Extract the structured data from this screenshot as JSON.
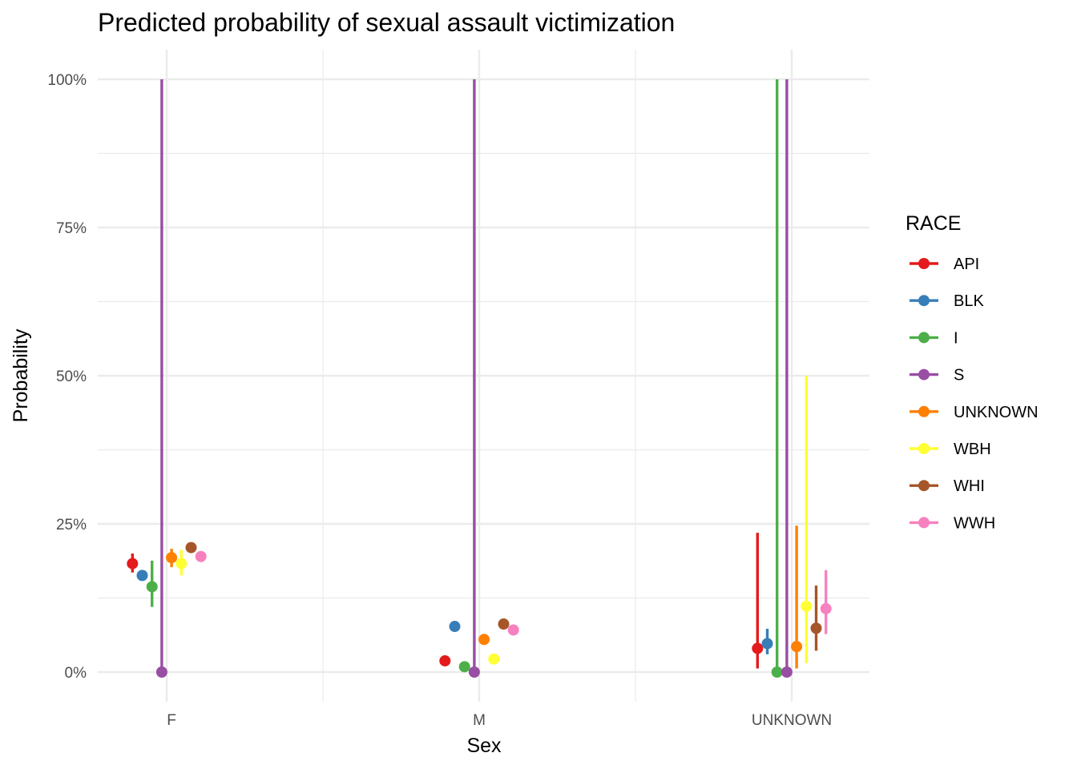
{
  "chart_data": {
    "type": "scatter",
    "title": "Predicted probability of sexual assault victimization",
    "xlabel": "Sex",
    "ylabel": "Probability",
    "categories": [
      "F",
      "M",
      "UNKNOWN"
    ],
    "ylim": [
      0,
      1
    ],
    "yticks": [
      0,
      0.25,
      0.5,
      0.75,
      1
    ],
    "ytick_labels": [
      "0%",
      "25%",
      "50%",
      "75%",
      "100%"
    ],
    "grid": true,
    "legend": {
      "title": "RACE",
      "position": "right"
    },
    "series": [
      {
        "name": "API",
        "color": "#E41A1C",
        "points": [
          {
            "x": "F",
            "y": 0.183,
            "low": 0.168,
            "high": 0.2
          },
          {
            "x": "M",
            "y": 0.019,
            "low": null,
            "high": null
          },
          {
            "x": "UNKNOWN",
            "y": 0.04,
            "low": 0.006,
            "high": 0.235
          }
        ]
      },
      {
        "name": "BLK",
        "color": "#377EB8",
        "points": [
          {
            "x": "F",
            "y": 0.163,
            "low": null,
            "high": null
          },
          {
            "x": "M",
            "y": 0.077,
            "low": null,
            "high": null
          },
          {
            "x": "UNKNOWN",
            "y": 0.048,
            "low": 0.03,
            "high": 0.073
          }
        ]
      },
      {
        "name": "I",
        "color": "#4DAF4A",
        "points": [
          {
            "x": "F",
            "y": 0.144,
            "low": 0.11,
            "high": 0.188
          },
          {
            "x": "M",
            "y": 0.009,
            "low": null,
            "high": null
          },
          {
            "x": "UNKNOWN",
            "y": 0.0,
            "low": 0.0,
            "high": 1.0
          }
        ]
      },
      {
        "name": "S",
        "color": "#984EA3",
        "points": [
          {
            "x": "F",
            "y": 0.0,
            "low": 0.0,
            "high": 1.0
          },
          {
            "x": "M",
            "y": 0.0,
            "low": 0.0,
            "high": 1.0
          },
          {
            "x": "UNKNOWN",
            "y": 0.0,
            "low": 0.0,
            "high": 1.0
          }
        ]
      },
      {
        "name": "UNKNOWN",
        "color": "#FF7F00",
        "points": [
          {
            "x": "F",
            "y": 0.193,
            "low": 0.177,
            "high": 0.208
          },
          {
            "x": "M",
            "y": 0.055,
            "low": null,
            "high": null
          },
          {
            "x": "UNKNOWN",
            "y": 0.043,
            "low": 0.006,
            "high": 0.247
          }
        ]
      },
      {
        "name": "WBH",
        "color": "#FFFF33",
        "points": [
          {
            "x": "F",
            "y": 0.183,
            "low": 0.163,
            "high": 0.206
          },
          {
            "x": "M",
            "y": 0.022,
            "low": null,
            "high": null
          },
          {
            "x": "UNKNOWN",
            "y": 0.111,
            "low": 0.015,
            "high": 0.5
          }
        ]
      },
      {
        "name": "WHI",
        "color": "#A65628",
        "points": [
          {
            "x": "F",
            "y": 0.21,
            "low": 0.203,
            "high": 0.217
          },
          {
            "x": "M",
            "y": 0.081,
            "low": null,
            "high": null
          },
          {
            "x": "UNKNOWN",
            "y": 0.074,
            "low": 0.036,
            "high": 0.146
          }
        ]
      },
      {
        "name": "WWH",
        "color": "#F781BF",
        "points": [
          {
            "x": "F",
            "y": 0.195,
            "low": 0.191,
            "high": 0.199
          },
          {
            "x": "M",
            "y": 0.071,
            "low": null,
            "high": null
          },
          {
            "x": "UNKNOWN",
            "y": 0.107,
            "low": 0.064,
            "high": 0.172
          }
        ]
      }
    ]
  }
}
